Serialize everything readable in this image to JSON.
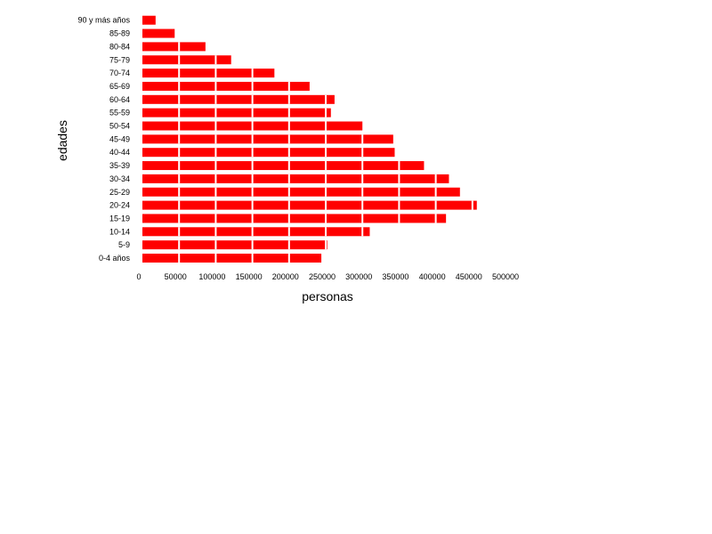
{
  "chart_data": {
    "type": "bar",
    "orientation": "horizontal",
    "categories": [
      "0-4 años",
      "5-9",
      "10-14",
      "15-19",
      "20-24",
      "25-29",
      "30-34",
      "35-39",
      "40-44",
      "45-49",
      "50-54",
      "55-59",
      "60-64",
      "65-69",
      "70-74",
      "75-79",
      "80-84",
      "85-89",
      "90 y más años"
    ],
    "values": [
      244000,
      252000,
      310000,
      414000,
      456000,
      433000,
      418000,
      384000,
      344000,
      342000,
      300000,
      257000,
      262000,
      228000,
      180000,
      121000,
      86000,
      44000,
      18000
    ],
    "xlabel": "personas",
    "ylabel": "edades",
    "xlim": [
      0,
      500000
    ],
    "xticks": [
      0,
      50000,
      100000,
      150000,
      200000,
      250000,
      300000,
      350000,
      400000,
      450000,
      500000
    ],
    "grid": false,
    "bar_color": "#ff0000",
    "segment_divider_color": "#ffffff",
    "legend": "none"
  }
}
